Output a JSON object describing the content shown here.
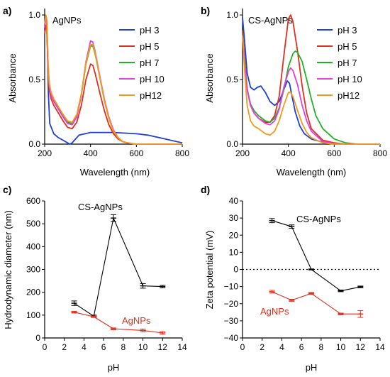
{
  "colors": {
    "pH 3": "#1f3fd6",
    "pH 5": "#e0301e",
    "pH 7": "#22b02a",
    "pH 10": "#e040e0",
    "pH12": "#f39a1e",
    "CS-AgNPs": "#000000",
    "AgNPs": "#e0301e"
  },
  "chart_data": [
    {
      "panel": "a)",
      "type": "line",
      "title": "AgNPs",
      "xlabel": "Wavelength (nm)",
      "ylabel": "Absorbance",
      "xlim": [
        200,
        800
      ],
      "ylim": [
        0,
        1.05
      ],
      "xticks": [
        "200",
        "400",
        "600",
        "800"
      ],
      "yticks": [
        "0.0",
        "0.5",
        "1.0"
      ],
      "legend_position": "top-right",
      "series": [
        {
          "name": "pH 3",
          "x": [
            200,
            208,
            212,
            216,
            222,
            240,
            260,
            280,
            300,
            310,
            320,
            330,
            350,
            400,
            450,
            500,
            550,
            600,
            650,
            700,
            800
          ],
          "y": [
            0.95,
            0.98,
            0.72,
            0.4,
            0.16,
            0.08,
            0.05,
            0.03,
            0.01,
            0.0,
            0.01,
            0.03,
            0.07,
            0.09,
            0.09,
            0.09,
            0.085,
            0.08,
            0.07,
            0.05,
            0.01
          ]
        },
        {
          "name": "pH 5",
          "x": [
            200,
            205,
            210,
            215,
            220,
            228,
            240,
            260,
            280,
            300,
            320,
            340,
            360,
            380,
            400,
            410,
            420,
            440,
            460,
            480,
            500,
            520,
            540,
            560,
            580,
            600,
            650,
            700,
            800
          ],
          "y": [
            0.85,
            0.92,
            0.88,
            0.55,
            0.42,
            0.35,
            0.3,
            0.24,
            0.18,
            0.13,
            0.12,
            0.17,
            0.3,
            0.5,
            0.62,
            0.61,
            0.55,
            0.4,
            0.26,
            0.15,
            0.08,
            0.04,
            0.02,
            0.01,
            0.005,
            0.0,
            0.0,
            0.0,
            0.0
          ]
        },
        {
          "name": "pH 7",
          "x": [
            200,
            205,
            210,
            215,
            220,
            228,
            240,
            260,
            280,
            300,
            320,
            340,
            360,
            380,
            400,
            410,
            420,
            440,
            460,
            480,
            500,
            520,
            540,
            560,
            580,
            600,
            650,
            700,
            800
          ],
          "y": [
            0.92,
            0.98,
            0.95,
            0.62,
            0.46,
            0.39,
            0.34,
            0.28,
            0.22,
            0.17,
            0.16,
            0.22,
            0.38,
            0.62,
            0.76,
            0.76,
            0.7,
            0.52,
            0.34,
            0.2,
            0.1,
            0.05,
            0.02,
            0.01,
            0.005,
            0.0,
            0.0,
            0.0,
            0.0
          ]
        },
        {
          "name": "pH 10",
          "x": [
            200,
            205,
            210,
            215,
            220,
            228,
            240,
            260,
            280,
            300,
            320,
            340,
            360,
            380,
            400,
            410,
            420,
            440,
            460,
            480,
            500,
            520,
            540,
            560,
            580,
            600,
            650,
            700,
            800
          ],
          "y": [
            0.9,
            0.98,
            0.93,
            0.6,
            0.45,
            0.38,
            0.33,
            0.27,
            0.21,
            0.16,
            0.15,
            0.21,
            0.38,
            0.64,
            0.8,
            0.79,
            0.72,
            0.53,
            0.35,
            0.21,
            0.11,
            0.05,
            0.02,
            0.01,
            0.005,
            0.0,
            0.0,
            0.0,
            0.0
          ]
        },
        {
          "name": "pH12",
          "x": [
            200,
            205,
            210,
            215,
            220,
            228,
            240,
            260,
            280,
            300,
            320,
            340,
            360,
            380,
            400,
            410,
            420,
            440,
            460,
            480,
            500,
            520,
            540,
            560,
            580,
            600,
            650,
            700,
            800
          ],
          "y": [
            0.93,
            1.0,
            0.96,
            0.63,
            0.47,
            0.4,
            0.35,
            0.29,
            0.23,
            0.18,
            0.17,
            0.23,
            0.39,
            0.63,
            0.77,
            0.77,
            0.71,
            0.52,
            0.34,
            0.2,
            0.1,
            0.05,
            0.02,
            0.01,
            0.005,
            0.0,
            0.0,
            0.0,
            0.0
          ]
        }
      ]
    },
    {
      "panel": "b)",
      "type": "line",
      "title": "CS-AgNPs",
      "xlabel": "Wavelength (nm)",
      "ylabel": "Absorbance",
      "xlim": [
        200,
        800
      ],
      "ylim": [
        0,
        1.05
      ],
      "xticks": [
        "200",
        "400",
        "600",
        "800"
      ],
      "yticks": [
        "0.0",
        "0.5",
        "1.0"
      ],
      "legend_position": "top-right",
      "series": [
        {
          "name": "pH 3",
          "x": [
            200,
            210,
            220,
            235,
            250,
            265,
            280,
            300,
            320,
            340,
            360,
            380,
            395,
            405,
            415,
            430,
            450,
            470,
            500,
            550,
            600,
            650,
            700,
            800
          ],
          "y": [
            0.98,
            0.78,
            0.55,
            0.44,
            0.42,
            0.44,
            0.45,
            0.4,
            0.33,
            0.3,
            0.33,
            0.42,
            0.49,
            0.47,
            0.38,
            0.25,
            0.14,
            0.08,
            0.04,
            0.015,
            0.005,
            0.0,
            0.0,
            0.0
          ]
        },
        {
          "name": "pH 5",
          "x": [
            200,
            210,
            220,
            235,
            250,
            270,
            300,
            320,
            340,
            360,
            380,
            400,
            410,
            420,
            440,
            460,
            480,
            500,
            550,
            600,
            650,
            700,
            800
          ],
          "y": [
            0.88,
            0.65,
            0.43,
            0.3,
            0.24,
            0.2,
            0.17,
            0.17,
            0.22,
            0.37,
            0.68,
            0.97,
            1.0,
            0.95,
            0.72,
            0.45,
            0.24,
            0.12,
            0.03,
            0.01,
            0.0,
            0.0,
            0.0
          ]
        },
        {
          "name": "pH 7",
          "x": [
            200,
            210,
            220,
            235,
            250,
            270,
            300,
            320,
            340,
            360,
            380,
            400,
            420,
            430,
            440,
            460,
            480,
            500,
            520,
            550,
            600,
            650,
            700,
            800
          ],
          "y": [
            0.86,
            0.64,
            0.43,
            0.31,
            0.26,
            0.22,
            0.18,
            0.17,
            0.2,
            0.28,
            0.42,
            0.6,
            0.7,
            0.72,
            0.71,
            0.64,
            0.5,
            0.35,
            0.22,
            0.12,
            0.04,
            0.01,
            0.0,
            0.0
          ]
        },
        {
          "name": "pH 10",
          "x": [
            200,
            210,
            220,
            235,
            250,
            270,
            300,
            320,
            340,
            360,
            380,
            400,
            410,
            420,
            440,
            460,
            480,
            500,
            550,
            600,
            650,
            700,
            800
          ],
          "y": [
            0.85,
            0.62,
            0.42,
            0.3,
            0.24,
            0.2,
            0.16,
            0.15,
            0.18,
            0.27,
            0.44,
            0.56,
            0.59,
            0.57,
            0.46,
            0.3,
            0.18,
            0.1,
            0.02,
            0.005,
            0.0,
            0.0,
            0.0
          ]
        },
        {
          "name": "pH12",
          "x": [
            200,
            210,
            220,
            235,
            250,
            270,
            300,
            320,
            340,
            360,
            380,
            400,
            410,
            420,
            440,
            460,
            480,
            500,
            550,
            600,
            650,
            700,
            800
          ],
          "y": [
            0.84,
            0.55,
            0.3,
            0.18,
            0.14,
            0.12,
            0.08,
            0.07,
            0.1,
            0.18,
            0.3,
            0.4,
            0.4,
            0.37,
            0.26,
            0.16,
            0.09,
            0.05,
            0.01,
            0.0,
            0.0,
            0.0,
            0.0
          ]
        }
      ]
    },
    {
      "panel": "c)",
      "type": "line",
      "xlabel": "pH",
      "ylabel": "Hydrodynamic diameter (nm)",
      "xlim": [
        0,
        14
      ],
      "ylim": [
        0,
        600
      ],
      "xticks": [
        "0",
        "2",
        "4",
        "6",
        "8",
        "10",
        "12",
        "14"
      ],
      "yticks": [
        "0",
        "100",
        "200",
        "300",
        "400",
        "500",
        "600"
      ],
      "series": [
        {
          "name": "CS-AgNPs",
          "x": [
            3,
            5,
            7,
            10,
            12
          ],
          "y": [
            152,
            95,
            525,
            228,
            225
          ],
          "err": [
            10,
            5,
            15,
            10,
            5
          ]
        },
        {
          "name": "AgNPs",
          "x": [
            3,
            5,
            7,
            10,
            12
          ],
          "y": [
            113,
            93,
            40,
            33,
            22
          ],
          "err": [
            4,
            3,
            4,
            6,
            6
          ]
        }
      ]
    },
    {
      "panel": "d)",
      "type": "line",
      "xlabel": "pH",
      "ylabel": "Zeta potential (mV)",
      "xlim": [
        0,
        14
      ],
      "ylim": [
        -40,
        40
      ],
      "xticks": [
        "0",
        "2",
        "4",
        "6",
        "8",
        "10",
        "12",
        "14"
      ],
      "yticks": [
        "40",
        "30",
        "20",
        "10",
        "0",
        "−10",
        "−20",
        "−30",
        "−40"
      ],
      "zero_line": true,
      "series": [
        {
          "name": "CS-AgNPs",
          "x": [
            3,
            5,
            7,
            10,
            12
          ],
          "y": [
            28.5,
            25,
            0,
            -12.5,
            -10.2
          ],
          "err": [
            1.2,
            1,
            0.3,
            0.5,
            0.5
          ]
        },
        {
          "name": "AgNPs",
          "x": [
            3,
            5,
            7,
            10,
            12
          ],
          "y": [
            -13,
            -18,
            -14,
            -26,
            -26
          ],
          "err": [
            0.8,
            0.6,
            0.6,
            0.5,
            2
          ]
        }
      ]
    }
  ]
}
